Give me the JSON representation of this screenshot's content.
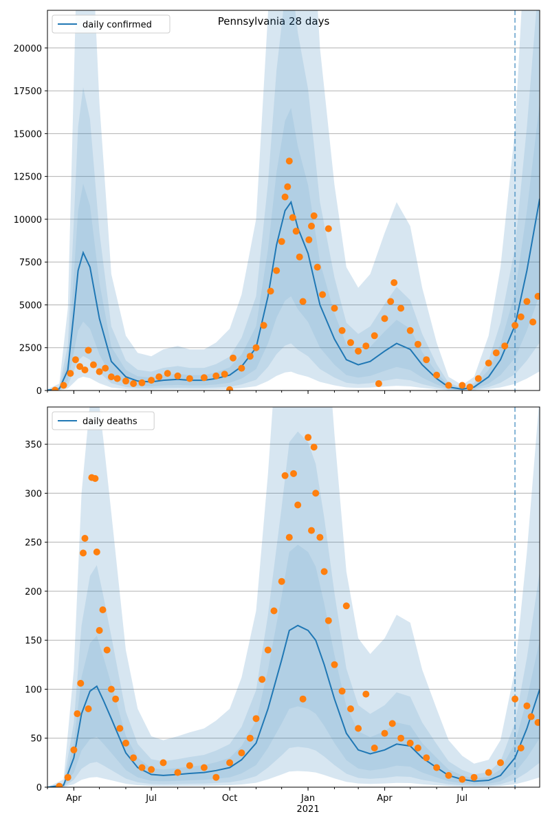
{
  "figure": {
    "title": "Pennsylvania 28 days"
  },
  "colors": {
    "model_line": "#1f77b4",
    "band": "#1f77b4",
    "observed": "#ff7f0e",
    "grid": "#b0b0b0",
    "vline": "#1f77b4"
  },
  "chart_data": [
    {
      "type": "line",
      "title": "Pennsylvania 28 days",
      "xlabel": "",
      "ylabel": "",
      "legend": "top-left",
      "grid": "horizontal",
      "x_range": [
        "2020-03-01",
        "2021-09-30"
      ],
      "ylim": [
        0,
        22200
      ],
      "yticks": [
        0,
        2500,
        5000,
        7500,
        10000,
        12500,
        15000,
        17500,
        20000
      ],
      "xticks": [
        {
          "date": "2020-04-01",
          "label": "Apr"
        },
        {
          "date": "2020-07-01",
          "label": "Jul"
        },
        {
          "date": "2020-10-01",
          "label": "Oct"
        },
        {
          "date": "2021-01-01",
          "label": "Jan"
        },
        {
          "date": "2021-04-01",
          "label": "Apr"
        },
        {
          "date": "2021-07-01",
          "label": "Jul"
        }
      ],
      "forecast_start": "2021-09-01",
      "series": [
        {
          "name": "daily confirmed",
          "kind": "model",
          "points": [
            [
              "2020-03-01",
              20
            ],
            [
              "2020-03-15",
              100
            ],
            [
              "2020-03-25",
              1200
            ],
            [
              "2020-04-01",
              4500
            ],
            [
              "2020-04-06",
              7000
            ],
            [
              "2020-04-12",
              8050
            ],
            [
              "2020-04-20",
              7200
            ],
            [
              "2020-05-01",
              4200
            ],
            [
              "2020-05-15",
              1700
            ],
            [
              "2020-06-01",
              800
            ],
            [
              "2020-06-15",
              550
            ],
            [
              "2020-07-01",
              500
            ],
            [
              "2020-07-15",
              600
            ],
            [
              "2020-08-01",
              650
            ],
            [
              "2020-08-15",
              600
            ],
            [
              "2020-09-01",
              600
            ],
            [
              "2020-09-15",
              700
            ],
            [
              "2020-10-01",
              900
            ],
            [
              "2020-10-15",
              1400
            ],
            [
              "2020-11-01",
              2500
            ],
            [
              "2020-11-15",
              5500
            ],
            [
              "2020-11-25",
              8500
            ],
            [
              "2020-12-05",
              10500
            ],
            [
              "2020-12-12",
              11000
            ],
            [
              "2020-12-20",
              9500
            ],
            [
              "2021-01-01",
              8000
            ],
            [
              "2021-01-15",
              5000
            ],
            [
              "2021-02-01",
              3000
            ],
            [
              "2021-02-15",
              1800
            ],
            [
              "2021-03-01",
              1500
            ],
            [
              "2021-03-15",
              1700
            ],
            [
              "2021-04-01",
              2300
            ],
            [
              "2021-04-15",
              2750
            ],
            [
              "2021-05-01",
              2400
            ],
            [
              "2021-05-15",
              1500
            ],
            [
              "2021-06-01",
              700
            ],
            [
              "2021-06-15",
              200
            ],
            [
              "2021-07-01",
              80
            ],
            [
              "2021-07-15",
              200
            ],
            [
              "2021-08-01",
              800
            ],
            [
              "2021-08-15",
              1800
            ],
            [
              "2021-09-01",
              3800
            ],
            [
              "2021-09-15",
              7000
            ],
            [
              "2021-09-30",
              11200
            ]
          ]
        },
        {
          "name": "",
          "kind": "observed",
          "points": [
            [
              "2020-03-10",
              20
            ],
            [
              "2020-03-20",
              300
            ],
            [
              "2020-03-28",
              1000
            ],
            [
              "2020-04-03",
              1800
            ],
            [
              "2020-04-08",
              1400
            ],
            [
              "2020-04-14",
              1200
            ],
            [
              "2020-04-18",
              2350
            ],
            [
              "2020-04-24",
              1500
            ],
            [
              "2020-05-01",
              1100
            ],
            [
              "2020-05-08",
              1300
            ],
            [
              "2020-05-15",
              800
            ],
            [
              "2020-05-22",
              700
            ],
            [
              "2020-06-01",
              550
            ],
            [
              "2020-06-10",
              400
            ],
            [
              "2020-06-20",
              450
            ],
            [
              "2020-07-01",
              600
            ],
            [
              "2020-07-10",
              800
            ],
            [
              "2020-07-20",
              1000
            ],
            [
              "2020-08-01",
              850
            ],
            [
              "2020-08-15",
              700
            ],
            [
              "2020-09-01",
              750
            ],
            [
              "2020-09-15",
              850
            ],
            [
              "2020-09-25",
              950
            ],
            [
              "2020-10-01",
              50
            ],
            [
              "2020-10-05",
              1900
            ],
            [
              "2020-10-15",
              1300
            ],
            [
              "2020-10-25",
              2000
            ],
            [
              "2020-11-01",
              2500
            ],
            [
              "2020-11-10",
              3800
            ],
            [
              "2020-11-18",
              5800
            ],
            [
              "2020-11-25",
              7000
            ],
            [
              "2020-12-01",
              8700
            ],
            [
              "2020-12-05",
              11300
            ],
            [
              "2020-12-08",
              11900
            ],
            [
              "2020-12-10",
              13400
            ],
            [
              "2020-12-14",
              10100
            ],
            [
              "2020-12-18",
              9300
            ],
            [
              "2020-12-22",
              7800
            ],
            [
              "2020-12-26",
              5200
            ],
            [
              "2021-01-02",
              8800
            ],
            [
              "2021-01-05",
              9600
            ],
            [
              "2021-01-08",
              10200
            ],
            [
              "2021-01-12",
              7200
            ],
            [
              "2021-01-18",
              5600
            ],
            [
              "2021-01-25",
              9450
            ],
            [
              "2021-02-01",
              4800
            ],
            [
              "2021-02-10",
              3500
            ],
            [
              "2021-02-20",
              2800
            ],
            [
              "2021-03-01",
              2300
            ],
            [
              "2021-03-10",
              2600
            ],
            [
              "2021-03-20",
              3200
            ],
            [
              "2021-03-25",
              400
            ],
            [
              "2021-04-01",
              4200
            ],
            [
              "2021-04-08",
              5200
            ],
            [
              "2021-04-12",
              6300
            ],
            [
              "2021-04-20",
              4800
            ],
            [
              "2021-05-01",
              3500
            ],
            [
              "2021-05-10",
              2700
            ],
            [
              "2021-05-20",
              1800
            ],
            [
              "2021-06-01",
              900
            ],
            [
              "2021-06-15",
              300
            ],
            [
              "2021-07-01",
              300
            ],
            [
              "2021-07-10",
              200
            ],
            [
              "2021-07-20",
              700
            ],
            [
              "2021-08-01",
              1600
            ],
            [
              "2021-08-10",
              2200
            ],
            [
              "2021-08-20",
              2600
            ],
            [
              "2021-09-01",
              3800
            ],
            [
              "2021-09-08",
              4300
            ],
            [
              "2021-09-15",
              5200
            ],
            [
              "2021-09-22",
              4000
            ],
            [
              "2021-09-28",
              5500
            ]
          ]
        }
      ]
    },
    {
      "type": "line",
      "xlabel": "",
      "ylabel": "",
      "legend": "top-left",
      "grid": "horizontal",
      "x_range": [
        "2020-03-01",
        "2021-09-30"
      ],
      "ylim": [
        0,
        388
      ],
      "yticks": [
        0,
        50,
        100,
        150,
        200,
        250,
        300,
        350
      ],
      "xticks": [
        {
          "date": "2020-04-01",
          "label": "Apr"
        },
        {
          "date": "2020-07-01",
          "label": "Jul"
        },
        {
          "date": "2020-10-01",
          "label": "Oct"
        },
        {
          "date": "2021-01-01",
          "label": "Jan"
        },
        {
          "date": "2021-04-01",
          "label": "Apr"
        },
        {
          "date": "2021-07-01",
          "label": "Jul"
        }
      ],
      "year_label": {
        "date": "2021-01-01",
        "label": "2021"
      },
      "forecast_start": "2021-09-01",
      "series": [
        {
          "name": "daily deaths",
          "kind": "model",
          "points": [
            [
              "2020-03-01",
              0
            ],
            [
              "2020-03-20",
              2
            ],
            [
              "2020-04-01",
              30
            ],
            [
              "2020-04-10",
              75
            ],
            [
              "2020-04-20",
              98
            ],
            [
              "2020-04-28",
              103
            ],
            [
              "2020-05-06",
              88
            ],
            [
              "2020-05-15",
              70
            ],
            [
              "2020-06-01",
              35
            ],
            [
              "2020-06-15",
              20
            ],
            [
              "2020-07-01",
              13
            ],
            [
              "2020-07-15",
              12
            ],
            [
              "2020-08-01",
              13
            ],
            [
              "2020-08-15",
              14
            ],
            [
              "2020-09-01",
              15
            ],
            [
              "2020-09-15",
              17
            ],
            [
              "2020-10-01",
              20
            ],
            [
              "2020-10-15",
              28
            ],
            [
              "2020-11-01",
              45
            ],
            [
              "2020-11-15",
              80
            ],
            [
              "2020-12-01",
              130
            ],
            [
              "2020-12-10",
              160
            ],
            [
              "2020-12-20",
              165
            ],
            [
              "2021-01-01",
              160
            ],
            [
              "2021-01-10",
              150
            ],
            [
              "2021-01-20",
              125
            ],
            [
              "2021-02-01",
              90
            ],
            [
              "2021-02-15",
              55
            ],
            [
              "2021-03-01",
              38
            ],
            [
              "2021-03-15",
              34
            ],
            [
              "2021-04-01",
              38
            ],
            [
              "2021-04-15",
              44
            ],
            [
              "2021-05-01",
              42
            ],
            [
              "2021-05-15",
              30
            ],
            [
              "2021-06-01",
              20
            ],
            [
              "2021-06-15",
              12
            ],
            [
              "2021-07-01",
              8
            ],
            [
              "2021-07-15",
              6
            ],
            [
              "2021-08-01",
              7
            ],
            [
              "2021-08-15",
              12
            ],
            [
              "2021-09-01",
              30
            ],
            [
              "2021-09-15",
              60
            ],
            [
              "2021-09-30",
              100
            ]
          ]
        },
        {
          "name": "",
          "kind": "observed",
          "points": [
            [
              "2020-03-15",
              1
            ],
            [
              "2020-03-25",
              10
            ],
            [
              "2020-04-01",
              38
            ],
            [
              "2020-04-05",
              75
            ],
            [
              "2020-04-09",
              106
            ],
            [
              "2020-04-12",
              239
            ],
            [
              "2020-04-14",
              254
            ],
            [
              "2020-04-18",
              80
            ],
            [
              "2020-04-22",
              316
            ],
            [
              "2020-04-26",
              315
            ],
            [
              "2020-04-28",
              240
            ],
            [
              "2020-05-01",
              160
            ],
            [
              "2020-05-05",
              181
            ],
            [
              "2020-05-10",
              140
            ],
            [
              "2020-05-15",
              100
            ],
            [
              "2020-05-20",
              90
            ],
            [
              "2020-05-25",
              60
            ],
            [
              "2020-06-01",
              45
            ],
            [
              "2020-06-10",
              30
            ],
            [
              "2020-06-20",
              20
            ],
            [
              "2020-07-01",
              18
            ],
            [
              "2020-07-15",
              25
            ],
            [
              "2020-08-01",
              15
            ],
            [
              "2020-08-15",
              22
            ],
            [
              "2020-09-01",
              20
            ],
            [
              "2020-09-15",
              10
            ],
            [
              "2020-10-01",
              25
            ],
            [
              "2020-10-15",
              35
            ],
            [
              "2020-10-25",
              50
            ],
            [
              "2020-11-01",
              70
            ],
            [
              "2020-11-08",
              110
            ],
            [
              "2020-11-15",
              140
            ],
            [
              "2020-11-22",
              180
            ],
            [
              "2020-12-01",
              210
            ],
            [
              "2020-12-05",
              318
            ],
            [
              "2020-12-10",
              255
            ],
            [
              "2020-12-15",
              320
            ],
            [
              "2020-12-20",
              288
            ],
            [
              "2020-12-26",
              90
            ],
            [
              "2021-01-01",
              357
            ],
            [
              "2021-01-05",
              262
            ],
            [
              "2021-01-08",
              347
            ],
            [
              "2021-01-10",
              300
            ],
            [
              "2021-01-15",
              255
            ],
            [
              "2021-01-20",
              220
            ],
            [
              "2021-01-25",
              170
            ],
            [
              "2021-02-01",
              125
            ],
            [
              "2021-02-10",
              98
            ],
            [
              "2021-02-15",
              185
            ],
            [
              "2021-02-20",
              80
            ],
            [
              "2021-03-01",
              60
            ],
            [
              "2021-03-10",
              95
            ],
            [
              "2021-03-20",
              40
            ],
            [
              "2021-04-01",
              55
            ],
            [
              "2021-04-10",
              65
            ],
            [
              "2021-04-20",
              50
            ],
            [
              "2021-05-01",
              45
            ],
            [
              "2021-05-10",
              40
            ],
            [
              "2021-05-20",
              30
            ],
            [
              "2021-06-01",
              20
            ],
            [
              "2021-06-15",
              12
            ],
            [
              "2021-07-01",
              8
            ],
            [
              "2021-07-15",
              10
            ],
            [
              "2021-08-01",
              15
            ],
            [
              "2021-08-15",
              25
            ],
            [
              "2021-09-01",
              90
            ],
            [
              "2021-09-08",
              40
            ],
            [
              "2021-09-15",
              83
            ],
            [
              "2021-09-20",
              72
            ],
            [
              "2021-09-28",
              66
            ]
          ]
        }
      ]
    }
  ]
}
